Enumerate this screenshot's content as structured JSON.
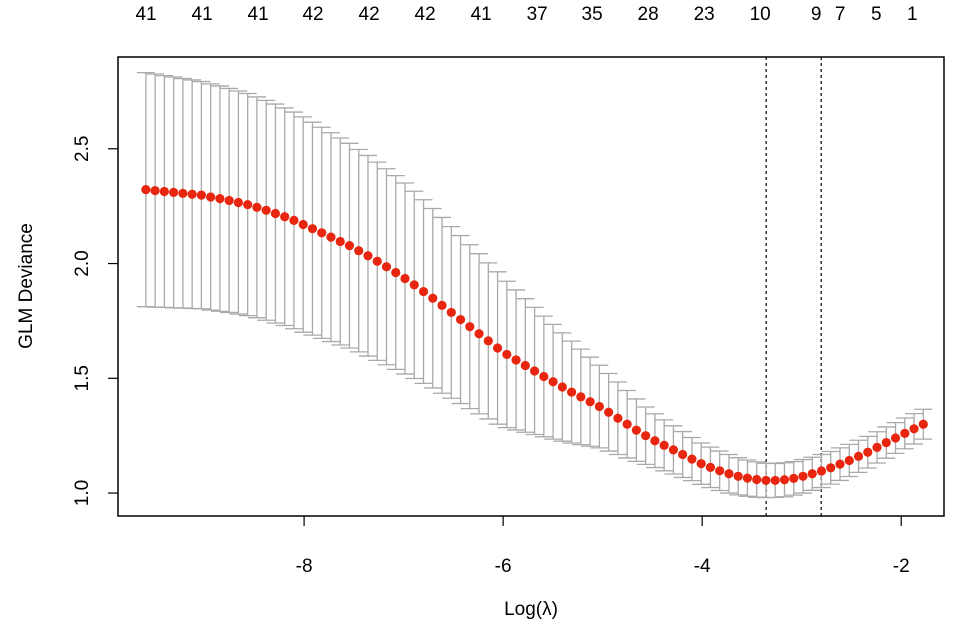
{
  "chart_data": {
    "type": "errorbar-scatter",
    "xlabel": "Log(λ)",
    "ylabel": "GLM Deviance",
    "xlim": [
      -9.87,
      -1.57
    ],
    "ylim": [
      0.9,
      2.9
    ],
    "xticks": [
      -8,
      -6,
      -4,
      -2
    ],
    "yticks": [
      {
        "value": 1,
        "label": "1.0"
      },
      {
        "value": 1.5,
        "label": "1.5"
      },
      {
        "value": 2,
        "label": "2.0"
      },
      {
        "value": 2.5,
        "label": "2.5"
      }
    ],
    "top_ticks": [
      {
        "value": -9.588,
        "label": "41"
      },
      {
        "value": -9.025,
        "label": "41"
      },
      {
        "value": -8.462,
        "label": "41"
      },
      {
        "value": -7.91,
        "label": "42"
      },
      {
        "value": -7.347,
        "label": "42"
      },
      {
        "value": -6.784,
        "label": "42"
      },
      {
        "value": -6.221,
        "label": "41"
      },
      {
        "value": -5.658,
        "label": "37"
      },
      {
        "value": -5.106,
        "label": "35"
      },
      {
        "value": -4.543,
        "label": "28"
      },
      {
        "value": -3.98,
        "label": "23"
      },
      {
        "value": -3.417,
        "label": "10"
      },
      {
        "value": -2.854,
        "label": "9"
      },
      {
        "value": -2.613,
        "label": "7"
      },
      {
        "value": -2.251,
        "label": "5"
      },
      {
        "value": -1.889,
        "label": "1"
      }
    ],
    "vlines": [
      -3.357,
      -2.804
    ],
    "point_color": "#e8260f",
    "bar_color": "#a9a9a9",
    "x": [
      -9.59,
      -9.497,
      -9.404,
      -9.311,
      -9.218,
      -9.125,
      -9.032,
      -8.939,
      -8.846,
      -8.753,
      -8.66,
      -8.567,
      -8.474,
      -8.381,
      -8.288,
      -8.195,
      -8.102,
      -8.009,
      -7.916,
      -7.823,
      -7.73,
      -7.637,
      -7.544,
      -7.451,
      -7.358,
      -7.265,
      -7.172,
      -7.079,
      -6.986,
      -6.893,
      -6.8,
      -6.707,
      -6.614,
      -6.521,
      -6.428,
      -6.335,
      -6.242,
      -6.149,
      -6.056,
      -5.963,
      -5.87,
      -5.777,
      -5.684,
      -5.591,
      -5.498,
      -5.405,
      -5.312,
      -5.219,
      -5.126,
      -5.033,
      -4.94,
      -4.847,
      -4.754,
      -4.661,
      -4.568,
      -4.475,
      -4.382,
      -4.289,
      -4.196,
      -4.103,
      -4.01,
      -3.917,
      -3.824,
      -3.731,
      -3.638,
      -3.545,
      -3.452,
      -3.359,
      -3.266,
      -3.173,
      -3.08,
      -2.987,
      -2.894,
      -2.801,
      -2.708,
      -2.615,
      -2.522,
      -2.429,
      -2.336,
      -2.243,
      -2.15,
      -2.057,
      -1.964,
      -1.871,
      -1.778
    ],
    "values": [
      2.322,
      2.318,
      2.314,
      2.31,
      2.306,
      2.302,
      2.298,
      2.29,
      2.283,
      2.275,
      2.266,
      2.257,
      2.245,
      2.232,
      2.218,
      2.204,
      2.188,
      2.17,
      2.152,
      2.134,
      2.115,
      2.096,
      2.078,
      2.056,
      2.034,
      2.01,
      1.986,
      1.961,
      1.935,
      1.907,
      1.878,
      1.849,
      1.818,
      1.787,
      1.756,
      1.725,
      1.694,
      1.663,
      1.632,
      1.604,
      1.58,
      1.556,
      1.532,
      1.508,
      1.485,
      1.462,
      1.44,
      1.419,
      1.398,
      1.377,
      1.352,
      1.326,
      1.3,
      1.274,
      1.25,
      1.228,
      1.208,
      1.188,
      1.168,
      1.148,
      1.128,
      1.112,
      1.097,
      1.084,
      1.073,
      1.065,
      1.059,
      1.055,
      1.055,
      1.058,
      1.064,
      1.073,
      1.084,
      1.096,
      1.11,
      1.126,
      1.142,
      1.16,
      1.178,
      1.199,
      1.22,
      1.24,
      1.26,
      1.28,
      1.3
    ],
    "errors": [
      0.51,
      0.508,
      0.505,
      0.503,
      0.5,
      0.498,
      0.495,
      0.493,
      0.491,
      0.488,
      0.486,
      0.484,
      0.481,
      0.479,
      0.477,
      0.474,
      0.472,
      0.469,
      0.464,
      0.46,
      0.455,
      0.451,
      0.446,
      0.441,
      0.437,
      0.432,
      0.427,
      0.422,
      0.416,
      0.408,
      0.4,
      0.391,
      0.383,
      0.374,
      0.366,
      0.357,
      0.349,
      0.34,
      0.332,
      0.319,
      0.305,
      0.291,
      0.277,
      0.263,
      0.25,
      0.236,
      0.222,
      0.208,
      0.194,
      0.18,
      0.169,
      0.158,
      0.147,
      0.136,
      0.125,
      0.117,
      0.111,
      0.105,
      0.1,
      0.094,
      0.09,
      0.088,
      0.086,
      0.084,
      0.081,
      0.079,
      0.077,
      0.075,
      0.074,
      0.074,
      0.073,
      0.073,
      0.072,
      0.072,
      0.071,
      0.071,
      0.07,
      0.07,
      0.069,
      0.068,
      0.068,
      0.067,
      0.067,
      0.066,
      0.065
    ]
  }
}
